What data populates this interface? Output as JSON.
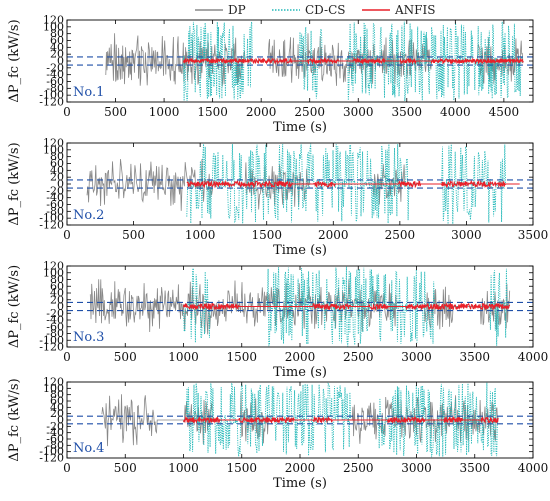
{
  "legend": {
    "position": "top-center",
    "items": [
      {
        "label": "DP",
        "color": "#888888",
        "style": "solid"
      },
      {
        "label": "CD-CS",
        "color": "#22b8b8",
        "style": "dotted"
      },
      {
        "label": "ANFIS",
        "color": "#e8202a",
        "style": "solid"
      }
    ]
  },
  "chart_data": [
    {
      "type": "line",
      "panel_label": "No.1",
      "xlabel": "Time (s)",
      "ylabel": "ΔP_fc (kW/s)",
      "xlim": [
        0,
        4800
      ],
      "ylim": [
        -120,
        120
      ],
      "xticks": [
        0,
        500,
        1000,
        1500,
        2000,
        2500,
        3000,
        3500,
        4000,
        4500
      ],
      "yticks": [
        120,
        100,
        80,
        60,
        40,
        20,
        0,
        -20,
        -40,
        -60,
        -80,
        -100,
        -120
      ],
      "threshold_lines": [
        12,
        -12
      ],
      "series": [
        {
          "name": "DP",
          "color": "#888888",
          "x_start": 400,
          "x_end": 4700,
          "amplitude": 85
        },
        {
          "name": "CD-CS",
          "color": "#22b8b8",
          "x_start": 1200,
          "x_end": 4700,
          "amplitude": 118
        },
        {
          "name": "ANFIS",
          "color": "#e8202a",
          "x_start": 1200,
          "x_end": 4700,
          "amplitude": 6
        }
      ]
    },
    {
      "type": "line",
      "panel_label": "No.2",
      "xlabel": "Time (s)",
      "ylabel": "ΔP_fc (kW/s)",
      "xlim": [
        0,
        3500
      ],
      "ylim": [
        -120,
        120
      ],
      "xticks": [
        0,
        500,
        1000,
        1500,
        2000,
        2500,
        3000,
        3500
      ],
      "yticks": [
        120,
        100,
        80,
        60,
        40,
        20,
        0,
        -20,
        -40,
        -60,
        -80,
        -100,
        -120
      ],
      "threshold_lines": [
        12,
        -12
      ],
      "series": [
        {
          "name": "DP",
          "color": "#888888",
          "x_start": 150,
          "x_end": 3400,
          "amplitude": 80
        },
        {
          "name": "CD-CS",
          "color": "#22b8b8",
          "x_start": 900,
          "x_end": 3400,
          "amplitude": 118
        },
        {
          "name": "ANFIS",
          "color": "#e8202a",
          "x_start": 900,
          "x_end": 3400,
          "amplitude": 8
        }
      ]
    },
    {
      "type": "line",
      "panel_label": "No.3",
      "xlabel": "Time (s)",
      "ylabel": "ΔP_fc (kW/s)",
      "xlim": [
        0,
        4000
      ],
      "ylim": [
        -120,
        120
      ],
      "xticks": [
        0,
        500,
        1000,
        1500,
        2000,
        2500,
        3000,
        3500,
        4000
      ],
      "yticks": [
        120,
        100,
        80,
        60,
        40,
        20,
        0,
        -20,
        -40,
        -60,
        -80,
        -100,
        -120
      ],
      "threshold_lines": [
        12,
        -12
      ],
      "series": [
        {
          "name": "DP",
          "color": "#888888",
          "x_start": 200,
          "x_end": 3800,
          "amplitude": 85
        },
        {
          "name": "CD-CS",
          "color": "#22b8b8",
          "x_start": 1000,
          "x_end": 3800,
          "amplitude": 118
        },
        {
          "name": "ANFIS",
          "color": "#e8202a",
          "x_start": 1000,
          "x_end": 3800,
          "amplitude": 8
        }
      ]
    },
    {
      "type": "line",
      "panel_label": "No.4",
      "xlabel": "Time (s)",
      "ylabel": "ΔP_fc (kW/s)",
      "xlim": [
        0,
        4000
      ],
      "ylim": [
        -120,
        120
      ],
      "xticks": [
        0,
        500,
        1000,
        1500,
        2000,
        2500,
        3000,
        3500,
        4000
      ],
      "yticks": [
        120,
        100,
        80,
        60,
        40,
        20,
        0,
        -20,
        -40,
        -60,
        -80,
        -100,
        -120
      ],
      "threshold_lines": [
        12,
        -12
      ],
      "series": [
        {
          "name": "DP",
          "color": "#888888",
          "x_start": 300,
          "x_end": 3700,
          "amplitude": 90
        },
        {
          "name": "CD-CS",
          "color": "#22b8b8",
          "x_start": 1000,
          "x_end": 3700,
          "amplitude": 118
        },
        {
          "name": "ANFIS",
          "color": "#e8202a",
          "x_start": 1000,
          "x_end": 3700,
          "amplitude": 8
        }
      ]
    }
  ]
}
